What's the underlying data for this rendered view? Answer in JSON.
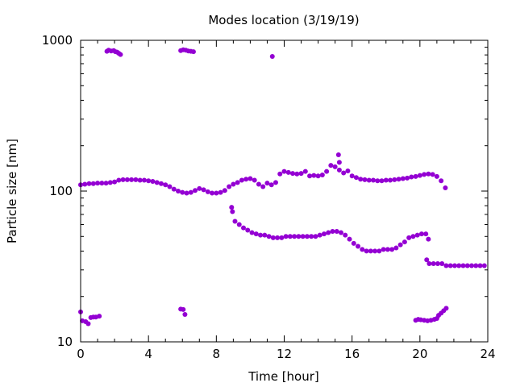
{
  "chart_data": {
    "type": "scatter",
    "title": "Modes location (3/19/19)",
    "xlabel": "Time [hour]",
    "ylabel": "Particle size [nm]",
    "xlim": [
      0,
      24
    ],
    "ylim": [
      10,
      1000
    ],
    "y_scale": "log",
    "grid": false,
    "legend": "none",
    "x_ticks": [
      {
        "value": 0,
        "label": "0"
      },
      {
        "value": 4,
        "label": "4"
      },
      {
        "value": 8,
        "label": "8"
      },
      {
        "value": 12,
        "label": "12"
      },
      {
        "value": 16,
        "label": "16"
      },
      {
        "value": 20,
        "label": "20"
      },
      {
        "value": 24,
        "label": "24"
      }
    ],
    "y_ticks": [
      {
        "value": 10,
        "label": "10"
      },
      {
        "value": 100,
        "label": "100"
      },
      {
        "value": 1000,
        "label": "1000"
      }
    ],
    "marker_color": "#9400d3",
    "series": [
      {
        "points": [
          [
            0.0,
            110
          ],
          [
            0.25,
            111
          ],
          [
            0.5,
            112
          ],
          [
            0.75,
            112
          ],
          [
            1.0,
            113
          ],
          [
            1.25,
            113
          ],
          [
            1.5,
            113
          ],
          [
            1.75,
            114
          ],
          [
            2.0,
            115
          ],
          [
            2.25,
            118
          ],
          [
            2.5,
            119
          ],
          [
            2.75,
            119
          ],
          [
            3.0,
            119
          ],
          [
            3.25,
            119
          ],
          [
            3.5,
            118
          ],
          [
            3.75,
            118
          ],
          [
            4.0,
            117
          ],
          [
            4.25,
            116
          ],
          [
            4.5,
            114
          ],
          [
            4.75,
            112
          ],
          [
            5.0,
            110
          ],
          [
            5.25,
            107
          ],
          [
            5.5,
            103
          ],
          [
            5.75,
            100
          ],
          [
            6.0,
            98
          ],
          [
            6.25,
            97
          ],
          [
            6.5,
            98
          ],
          [
            6.75,
            101
          ],
          [
            7.0,
            104
          ],
          [
            7.25,
            102
          ],
          [
            7.5,
            99
          ],
          [
            7.75,
            97
          ],
          [
            8.0,
            97
          ],
          [
            8.25,
            98
          ],
          [
            8.5,
            101
          ],
          [
            8.75,
            107
          ],
          [
            9.0,
            111
          ],
          [
            9.25,
            114
          ],
          [
            9.5,
            118
          ],
          [
            9.75,
            120
          ],
          [
            10.0,
            121
          ],
          [
            10.25,
            118
          ],
          [
            10.5,
            111
          ],
          [
            10.75,
            107
          ],
          [
            11.0,
            113
          ],
          [
            11.25,
            110
          ],
          [
            11.5,
            114
          ],
          [
            11.75,
            130
          ],
          [
            12.0,
            135
          ],
          [
            12.25,
            133
          ],
          [
            12.5,
            131
          ],
          [
            12.75,
            130
          ],
          [
            13.0,
            131
          ],
          [
            13.25,
            135
          ],
          [
            13.5,
            126
          ],
          [
            13.75,
            127
          ],
          [
            14.0,
            126
          ],
          [
            14.25,
            128
          ],
          [
            14.5,
            135
          ],
          [
            14.75,
            148
          ],
          [
            15.0,
            145
          ],
          [
            15.25,
            138
          ],
          [
            15.5,
            132
          ],
          [
            15.75,
            136
          ],
          [
            16.0,
            126
          ],
          [
            16.25,
            123
          ],
          [
            16.5,
            120
          ],
          [
            16.75,
            119
          ],
          [
            17.0,
            118
          ],
          [
            17.25,
            118
          ],
          [
            17.5,
            117
          ],
          [
            17.75,
            117
          ],
          [
            18.0,
            118
          ],
          [
            18.25,
            118
          ],
          [
            18.5,
            119
          ],
          [
            18.75,
            120
          ],
          [
            19.0,
            121
          ],
          [
            19.25,
            122
          ],
          [
            19.5,
            124
          ],
          [
            19.75,
            125
          ],
          [
            20.0,
            127
          ],
          [
            20.25,
            129
          ],
          [
            20.5,
            130
          ],
          [
            20.75,
            129
          ],
          [
            21.0,
            125
          ],
          [
            21.25,
            117
          ],
          [
            21.5,
            105
          ],
          [
            15.2,
            174
          ],
          [
            15.25,
            155
          ],
          [
            11.3,
            782
          ],
          [
            8.9,
            78
          ],
          [
            8.95,
            73
          ],
          [
            9.1,
            63
          ],
          [
            9.35,
            60
          ],
          [
            9.6,
            57
          ],
          [
            9.85,
            55
          ],
          [
            10.1,
            53
          ],
          [
            10.35,
            52
          ],
          [
            10.6,
            51
          ],
          [
            10.85,
            51
          ],
          [
            11.1,
            50
          ],
          [
            11.35,
            49
          ],
          [
            11.6,
            49
          ],
          [
            11.85,
            49
          ],
          [
            12.1,
            50
          ],
          [
            12.35,
            50
          ],
          [
            12.6,
            50
          ],
          [
            12.85,
            50
          ],
          [
            13.1,
            50
          ],
          [
            13.35,
            50
          ],
          [
            13.6,
            50
          ],
          [
            13.85,
            50
          ],
          [
            14.1,
            51
          ],
          [
            14.35,
            52
          ],
          [
            14.6,
            53
          ],
          [
            14.85,
            54
          ],
          [
            15.1,
            54
          ],
          [
            15.35,
            53
          ],
          [
            15.6,
            51
          ],
          [
            15.85,
            48
          ],
          [
            16.1,
            45
          ],
          [
            16.35,
            43
          ],
          [
            16.6,
            41
          ],
          [
            16.85,
            40
          ],
          [
            17.1,
            40
          ],
          [
            17.35,
            40
          ],
          [
            17.6,
            40
          ],
          [
            17.85,
            41
          ],
          [
            18.1,
            41
          ],
          [
            18.35,
            41
          ],
          [
            18.6,
            42
          ],
          [
            18.85,
            44
          ],
          [
            19.1,
            46
          ],
          [
            19.35,
            49
          ],
          [
            19.6,
            50
          ],
          [
            19.85,
            51
          ],
          [
            20.1,
            52
          ],
          [
            20.35,
            52
          ],
          [
            20.5,
            48
          ],
          [
            20.4,
            35
          ],
          [
            20.55,
            33
          ],
          [
            20.8,
            33
          ],
          [
            21.05,
            33
          ],
          [
            21.3,
            33
          ],
          [
            21.55,
            32
          ],
          [
            21.8,
            32
          ],
          [
            22.05,
            32
          ],
          [
            22.3,
            32
          ],
          [
            22.55,
            32
          ],
          [
            22.8,
            32
          ],
          [
            23.05,
            32
          ],
          [
            23.3,
            32
          ],
          [
            23.55,
            32
          ],
          [
            23.8,
            32
          ],
          [
            0.0,
            15.8
          ],
          [
            0.1,
            13.8
          ],
          [
            0.3,
            13.6
          ],
          [
            0.45,
            13.2
          ],
          [
            0.6,
            14.5
          ],
          [
            0.75,
            14.6
          ],
          [
            0.9,
            14.6
          ],
          [
            1.1,
            14.8
          ],
          [
            5.9,
            16.5
          ],
          [
            6.05,
            16.4
          ],
          [
            6.15,
            15.2
          ],
          [
            19.75,
            13.9
          ],
          [
            19.9,
            14.1
          ],
          [
            20.05,
            14.0
          ],
          [
            20.25,
            13.9
          ],
          [
            20.45,
            13.8
          ],
          [
            20.65,
            13.9
          ],
          [
            20.85,
            14.1
          ],
          [
            21.0,
            14.3
          ],
          [
            21.1,
            15.0
          ],
          [
            21.25,
            15.5
          ],
          [
            21.4,
            16.1
          ],
          [
            21.55,
            16.7
          ],
          [
            1.55,
            845
          ],
          [
            1.65,
            860
          ],
          [
            1.8,
            850
          ],
          [
            1.95,
            855
          ],
          [
            2.05,
            840
          ],
          [
            2.15,
            835
          ],
          [
            2.25,
            820
          ],
          [
            2.35,
            805
          ],
          [
            5.9,
            855
          ],
          [
            6.05,
            865
          ],
          [
            6.2,
            860
          ],
          [
            6.35,
            850
          ],
          [
            6.5,
            845
          ],
          [
            6.65,
            840
          ]
        ]
      }
    ]
  }
}
